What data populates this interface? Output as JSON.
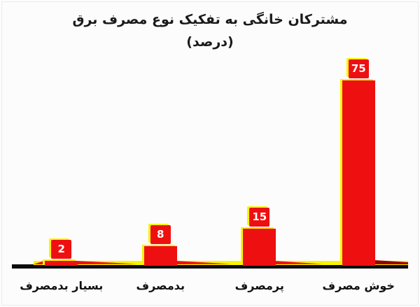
{
  "title": {
    "line1": "مشترکان خانگی به تفکیک نوع مصرف برق",
    "line2": "(درصد)"
  },
  "colors": {
    "bar_red": "#ee1010",
    "glow_yellow": "#f8f400",
    "axis_black": "#0c0c0c",
    "trail_dark_red": "#990000",
    "label_text": "#ffffff",
    "title_text": "#1a1a1a",
    "background": "#fcfcfc"
  },
  "chart_data": {
    "type": "bar",
    "title": "مشترکان خانگی به تفکیک نوع مصرف برق (درصد)",
    "categories": [
      "بسیار بدمصرف",
      "بدمصرف",
      "پرمصرف",
      "خوش مصرف"
    ],
    "values": [
      2,
      8,
      15,
      75
    ],
    "data_labels": [
      "2",
      "8",
      "15",
      "75"
    ],
    "xlabel": "",
    "ylabel": "",
    "ylim": [
      0,
      80
    ],
    "grid": false,
    "legend": false,
    "bar_color": "#ee1010",
    "value_label_style": "red box, white bold text, yellow offset outline",
    "category_order": "right-to-left (RTL chart)"
  }
}
